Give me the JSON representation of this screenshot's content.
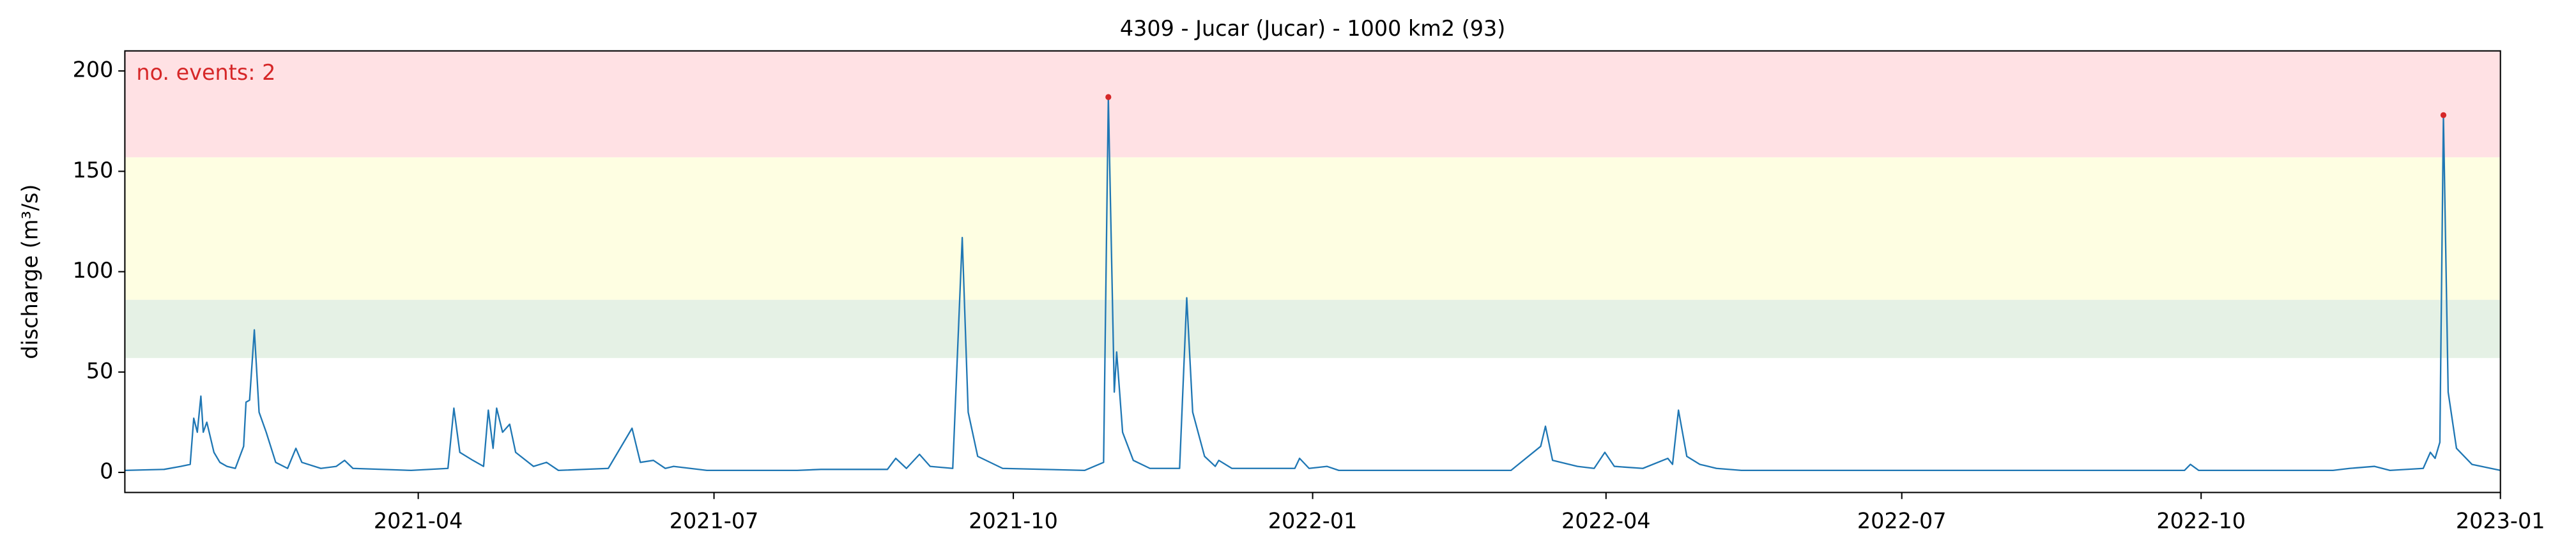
{
  "chart_data": {
    "type": "line",
    "title": "4309 - Jucar (Jucar) - 1000 km2 (93)",
    "y_label": "discharge (m³/s)",
    "annotation": "no. events: 2",
    "annotation_color": "#d62728",
    "xlim": [
      2021.0,
      2023.0
    ],
    "xticks": [
      {
        "value": 2021.247,
        "label": "2021-04"
      },
      {
        "value": 2021.496,
        "label": "2021-07"
      },
      {
        "value": 2021.748,
        "label": "2021-10"
      },
      {
        "value": 2022.0,
        "label": "2022-01"
      },
      {
        "value": 2022.247,
        "label": "2022-04"
      },
      {
        "value": 2022.496,
        "label": "2022-07"
      },
      {
        "value": 2022.748,
        "label": "2022-10"
      },
      {
        "value": 2023.0,
        "label": "2023-01"
      }
    ],
    "ylim": [
      -10,
      210
    ],
    "yticks": [
      0,
      50,
      100,
      150,
      200
    ],
    "bands": [
      {
        "from": 57,
        "to": 86,
        "color": "#e5f1e5"
      },
      {
        "from": 86,
        "to": 157,
        "color": "#fefee2"
      },
      {
        "from": 157,
        "to": 210,
        "color": "#ffe1e4"
      }
    ],
    "series": [
      {
        "color": "#1f77b4",
        "x": [
          2021.0,
          2021.033,
          2021.047,
          2021.055,
          2021.058,
          2021.061,
          2021.064,
          2021.066,
          2021.069,
          2021.075,
          2021.08,
          2021.086,
          2021.093,
          2021.1,
          2021.102,
          2021.105,
          2021.109,
          2021.113,
          2021.119,
          2021.127,
          2021.137,
          2021.144,
          2021.149,
          2021.165,
          2021.178,
          2021.185,
          2021.192,
          2021.241,
          2021.272,
          2021.277,
          2021.282,
          2021.293,
          2021.302,
          2021.306,
          2021.31,
          2021.313,
          2021.318,
          2021.324,
          2021.329,
          2021.344,
          2021.355,
          2021.365,
          2021.407,
          2021.427,
          2021.434,
          2021.445,
          2021.455,
          2021.462,
          2021.476,
          2021.49,
          2021.566,
          2021.586,
          2021.642,
          2021.649,
          2021.658,
          2021.669,
          2021.678,
          2021.697,
          2021.705,
          2021.71,
          2021.718,
          2021.739,
          2021.808,
          2021.824,
          2021.828,
          2021.833,
          2021.835,
          2021.84,
          2021.849,
          2021.863,
          2021.888,
          2021.894,
          2021.899,
          2021.909,
          2021.918,
          2021.921,
          2021.932,
          2021.985,
          2021.989,
          2021.997,
          2022.012,
          2022.022,
          2022.167,
          2022.192,
          2022.196,
          2022.202,
          2022.223,
          2022.237,
          2022.246,
          2022.254,
          2022.278,
          2022.299,
          2022.303,
          2022.308,
          2022.315,
          2022.326,
          2022.34,
          2022.361,
          2022.734,
          2022.739,
          2022.746,
          2022.859,
          2022.873,
          2022.894,
          2022.907,
          2022.935,
          2022.941,
          2022.945,
          2022.949,
          2022.952,
          2022.956,
          2022.963,
          2022.976,
          2023.0
        ],
        "values": [
          1,
          1.5,
          3,
          4,
          27,
          20,
          38,
          20,
          25,
          10,
          5,
          3,
          2,
          13,
          35,
          36,
          71,
          30,
          20,
          5,
          2,
          12,
          5,
          2,
          3,
          6,
          2,
          1,
          2,
          32,
          10,
          6,
          3,
          31,
          12,
          32,
          20,
          24,
          10,
          3,
          5,
          1,
          2,
          22,
          5,
          6,
          2,
          3,
          2,
          1,
          1,
          1.5,
          1.5,
          7,
          2,
          9,
          3,
          2,
          117,
          30,
          8,
          2,
          1,
          5,
          187,
          40,
          60,
          20,
          6,
          2,
          2,
          87,
          30,
          8,
          3,
          6,
          2,
          2,
          7,
          2,
          3,
          1,
          1,
          13,
          23,
          6,
          3,
          2,
          10,
          3,
          2,
          7,
          4,
          31,
          8,
          4,
          2,
          1,
          1,
          4,
          1,
          1,
          2,
          3,
          1,
          2,
          10,
          7,
          15,
          178,
          40,
          12,
          4,
          1
        ]
      }
    ],
    "events": {
      "x": [
        2021.828,
        2022.952
      ],
      "values": [
        187,
        178
      ],
      "color": "#d62728"
    }
  }
}
